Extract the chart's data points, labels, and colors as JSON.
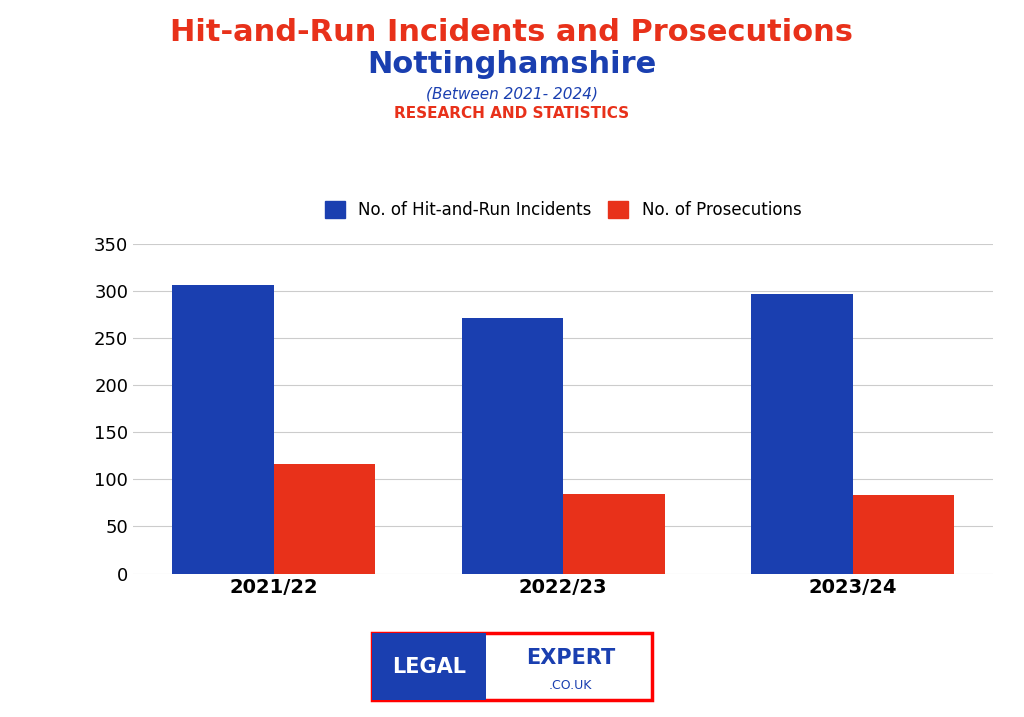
{
  "title_line1": "Hit-and-Run Incidents and Prosecutions",
  "title_line2": "Nottinghamshire",
  "subtitle": "(Between 2021- 2024)",
  "research_label": "RESEARCH AND STATISTICS",
  "categories": [
    "2021/22",
    "2022/23",
    "2023/24"
  ],
  "incidents": [
    306,
    271,
    297
  ],
  "prosecutions": [
    116,
    85,
    83
  ],
  "bar_color_blue": "#1a3fb0",
  "bar_color_red": "#e8311a",
  "title_color_red": "#e8311a",
  "title_color_blue": "#1a3fb0",
  "legend_label_incidents": "No. of Hit-and-Run Incidents",
  "legend_label_prosecutions": "No. of Prosecutions",
  "ylim": [
    0,
    350
  ],
  "yticks": [
    0,
    50,
    100,
    150,
    200,
    250,
    300,
    350
  ],
  "background_color": "#ffffff",
  "bar_width": 0.35,
  "grid_color": "#cccccc"
}
